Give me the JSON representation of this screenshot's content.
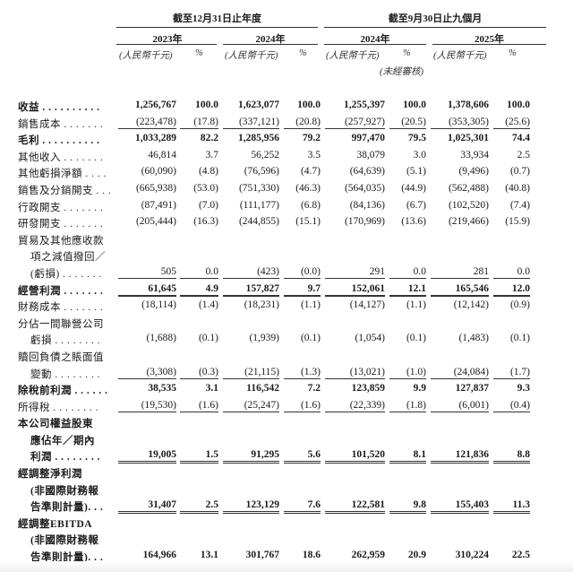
{
  "header": {
    "group1": "截至12月31日止年度",
    "group2": "截至9月30日止九個月",
    "years": [
      "2023年",
      "2024年",
      "2024年",
      "2025年"
    ],
    "unit": "(人民幣千元)",
    "pct": "%",
    "unaudited": "(未經審核)"
  },
  "rows": [
    {
      "label": "收益 . . . . . . . . . .",
      "indent": false,
      "bold": true,
      "rule": "",
      "values": [
        "1,256,767",
        "100.0",
        "1,623,077",
        "100.0",
        "1,255,397",
        "100.0",
        "1,378,606",
        "100.0"
      ]
    },
    {
      "label": "銷售成本 . . . . . . .",
      "indent": false,
      "bold": false,
      "rule": "single",
      "values": [
        "(223,478)",
        "(17.8)",
        "(337,121)",
        "(20.8)",
        "(257,927)",
        "(20.5)",
        "(353,305)",
        "(25.6)"
      ]
    },
    {
      "label": "毛利 . . . . . . . . . .",
      "indent": false,
      "bold": true,
      "rule": "",
      "values": [
        "1,033,289",
        "82.2",
        "1,285,956",
        "79.2",
        "997,470",
        "79.5",
        "1,025,301",
        "74.4"
      ]
    },
    {
      "label": "其他收入 . . . . . . .",
      "indent": false,
      "bold": false,
      "rule": "",
      "values": [
        "46,814",
        "3.7",
        "56,252",
        "3.5",
        "38,079",
        "3.0",
        "33,934",
        "2.5"
      ]
    },
    {
      "label": "其他虧損淨額 . . . .",
      "indent": false,
      "bold": false,
      "rule": "",
      "values": [
        "(60,090)",
        "(4.8)",
        "(76,596)",
        "(4.7)",
        "(64,639)",
        "(5.1)",
        "(9,496)",
        "(0.7)"
      ]
    },
    {
      "label": "銷售及分銷開支 . . .",
      "indent": false,
      "bold": false,
      "rule": "",
      "values": [
        "(665,938)",
        "(53.0)",
        "(751,330)",
        "(46.3)",
        "(564,035)",
        "(44.9)",
        "(562,488)",
        "(40.8)"
      ]
    },
    {
      "label": "行政開支 . . . . . . .",
      "indent": false,
      "bold": false,
      "rule": "",
      "values": [
        "(87,491)",
        "(7.0)",
        "(111,177)",
        "(6.8)",
        "(84,136)",
        "(6.7)",
        "(102,520)",
        "(7.4)"
      ]
    },
    {
      "label": "研發開支 . . . . . . .",
      "indent": false,
      "bold": false,
      "rule": "",
      "values": [
        "(205,444)",
        "(16.3)",
        "(244,855)",
        "(15.1)",
        "(170,969)",
        "(13.6)",
        "(219,466)",
        "(15.9)"
      ]
    },
    {
      "label": "貿易及其他應收款",
      "indent": false,
      "bold": false,
      "rule": "",
      "values": [
        "",
        "",
        "",
        "",
        "",
        "",
        "",
        ""
      ]
    },
    {
      "label": "項之減值撥回／",
      "indent": true,
      "bold": false,
      "rule": "",
      "values": [
        "",
        "",
        "",
        "",
        "",
        "",
        "",
        ""
      ]
    },
    {
      "label": "(虧損) . . . . . . .",
      "indent": true,
      "bold": false,
      "rule": "single",
      "values": [
        "505",
        "0.0",
        "(423)",
        "(0.0)",
        "291",
        "0.0",
        "281",
        "0.0"
      ]
    },
    {
      "label": "經營利潤 . . . . . . .",
      "indent": false,
      "bold": true,
      "rule": "thick",
      "values": [
        "61,645",
        "4.9",
        "157,827",
        "9.7",
        "152,061",
        "12.1",
        "165,546",
        "12.0"
      ]
    },
    {
      "label": "財務成本 . . . . . . .",
      "indent": false,
      "bold": false,
      "rule": "",
      "values": [
        "(18,114)",
        "(1.4)",
        "(18,231)",
        "(1.1)",
        "(14,127)",
        "(1.1)",
        "(12,142)",
        "(0.9)"
      ]
    },
    {
      "label": "分佔一間聯營公司",
      "indent": false,
      "bold": false,
      "rule": "",
      "values": [
        "",
        "",
        "",
        "",
        "",
        "",
        "",
        ""
      ]
    },
    {
      "label": "虧損 . . . . . . . .",
      "indent": true,
      "bold": false,
      "rule": "",
      "values": [
        "(1,688)",
        "(0.1)",
        "(1,939)",
        "(0.1)",
        "(1,054)",
        "(0.1)",
        "(1,483)",
        "(0.1)"
      ]
    },
    {
      "label": "贖回負債之賬面值",
      "indent": false,
      "bold": false,
      "rule": "",
      "values": [
        "",
        "",
        "",
        "",
        "",
        "",
        "",
        ""
      ]
    },
    {
      "label": "變動 . . . . . . . .",
      "indent": true,
      "bold": false,
      "rule": "single",
      "values": [
        "(3,308)",
        "(0.3)",
        "(21,115)",
        "(1.3)",
        "(13,021)",
        "(1.0)",
        "(24,084)",
        "(1.7)"
      ]
    },
    {
      "label": "除稅前利潤 . . . . . .",
      "indent": false,
      "bold": true,
      "rule": "",
      "values": [
        "38,535",
        "3.1",
        "116,542",
        "7.2",
        "123,859",
        "9.9",
        "127,837",
        "9.3"
      ]
    },
    {
      "label": "所得稅 . . . . . . . .",
      "indent": false,
      "bold": false,
      "rule": "single",
      "values": [
        "(19,530)",
        "(1.6)",
        "(25,247)",
        "(1.6)",
        "(22,339)",
        "(1.8)",
        "(6,001)",
        "(0.4)"
      ]
    },
    {
      "label": "本公司權益股東",
      "indent": false,
      "bold": true,
      "rule": "",
      "values": [
        "",
        "",
        "",
        "",
        "",
        "",
        "",
        ""
      ]
    },
    {
      "label": "應佔年／期內",
      "indent": true,
      "bold": true,
      "rule": "",
      "values": [
        "",
        "",
        "",
        "",
        "",
        "",
        "",
        ""
      ]
    },
    {
      "label": "利潤 . . . . . . . .",
      "indent": true,
      "bold": true,
      "rule": "double",
      "values": [
        "19,005",
        "1.5",
        "91,295",
        "5.6",
        "101,520",
        "8.1",
        "121,836",
        "8.8"
      ]
    },
    {
      "label": "經調整淨利潤",
      "indent": false,
      "bold": true,
      "rule": "",
      "values": [
        "",
        "",
        "",
        "",
        "",
        "",
        "",
        ""
      ]
    },
    {
      "label": "(非國際財務報",
      "indent": true,
      "bold": true,
      "rule": "",
      "values": [
        "",
        "",
        "",
        "",
        "",
        "",
        "",
        ""
      ]
    },
    {
      "label": "告準則計量). . .",
      "indent": true,
      "bold": true,
      "rule": "double",
      "values": [
        "31,407",
        "2.5",
        "123,129",
        "7.6",
        "122,581",
        "9.8",
        "155,403",
        "11.3"
      ]
    },
    {
      "label": "經調整EBITDA",
      "indent": false,
      "bold": true,
      "rule": "",
      "values": [
        "",
        "",
        "",
        "",
        "",
        "",
        "",
        ""
      ]
    },
    {
      "label": "(非國際財務報",
      "indent": true,
      "bold": true,
      "rule": "",
      "values": [
        "",
        "",
        "",
        "",
        "",
        "",
        "",
        ""
      ]
    },
    {
      "label": "告準則計量). . .",
      "indent": true,
      "bold": true,
      "rule": "double",
      "values": [
        "164,966",
        "13.1",
        "301,767",
        "18.6",
        "262,959",
        "20.9",
        "310,224",
        "22.5"
      ]
    }
  ]
}
